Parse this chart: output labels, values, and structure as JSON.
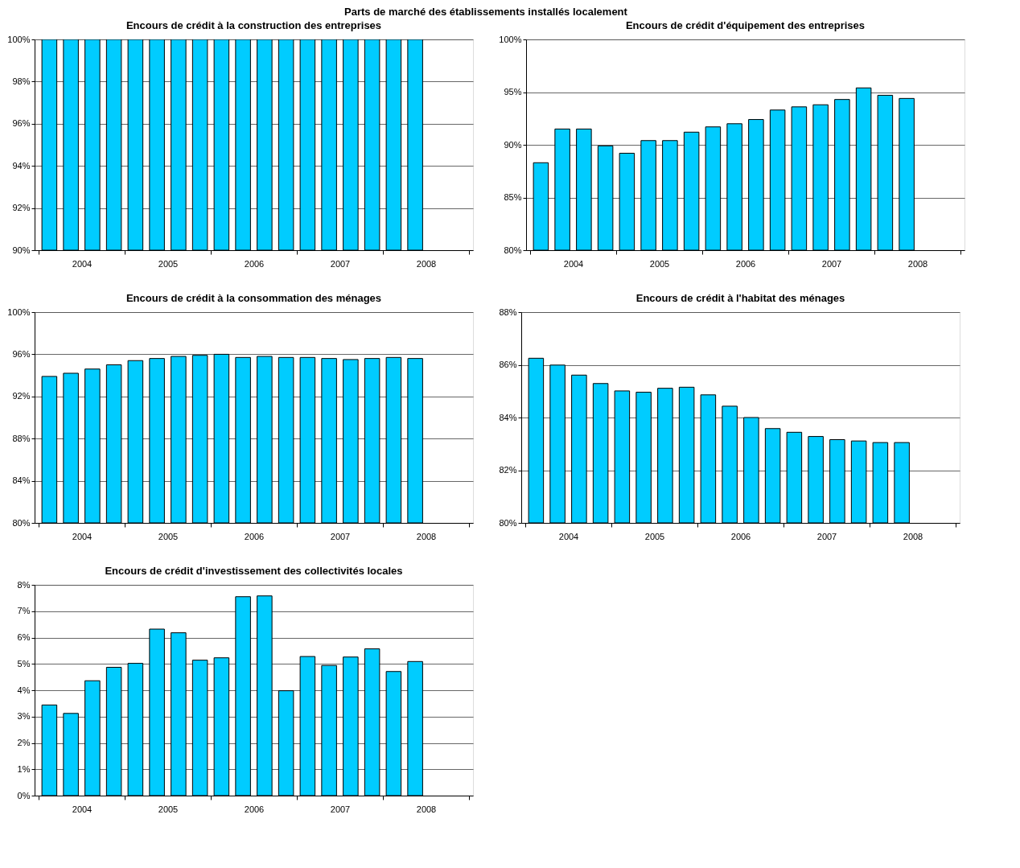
{
  "chart_data": [
    {
      "type": "other",
      "title": "Parts de marché des établissements installés localement"
    },
    {
      "type": "bar",
      "title": "Encours de crédit à la construction des entreprises",
      "color": "#00ccff",
      "grid": "y",
      "x": [
        2004.125,
        2004.375,
        2004.625,
        2004.875,
        2005.125,
        2005.375,
        2005.625,
        2005.875,
        2006.125,
        2006.375,
        2006.625,
        2006.875,
        2007.125,
        2007.375,
        2007.625,
        2007.875,
        2008.125,
        2008.375
      ],
      "values": [
        100,
        100,
        100,
        100,
        100,
        100,
        100,
        100,
        100,
        100,
        100,
        100,
        100,
        100,
        100,
        100,
        100,
        100
      ],
      "xlim": [
        2004,
        2009
      ],
      "xticks": [
        {
          "value": 2004,
          "label": null
        },
        {
          "value": 2004.5,
          "label": "2004"
        },
        {
          "value": 2005,
          "label": null
        },
        {
          "value": 2005.5,
          "label": "2005"
        },
        {
          "value": 2006,
          "label": null
        },
        {
          "value": 2006.5,
          "label": "2006"
        },
        {
          "value": 2007,
          "label": null
        },
        {
          "value": 2007.5,
          "label": "2007"
        },
        {
          "value": 2008,
          "label": null
        },
        {
          "value": 2008.5,
          "label": "2008"
        },
        {
          "value": 2009,
          "label": null
        }
      ],
      "ylim": [
        90,
        100
      ],
      "yticks": [
        {
          "value": 90,
          "label": "90%"
        },
        {
          "value": 92,
          "label": "92%"
        },
        {
          "value": 94,
          "label": "94%"
        },
        {
          "value": 96,
          "label": "96%"
        },
        {
          "value": 98,
          "label": "98%"
        },
        {
          "value": 100,
          "label": "100%"
        }
      ]
    },
    {
      "type": "bar",
      "title": "Encours de crédit d'équipement des entreprises",
      "color": "#00ccff",
      "grid": "y",
      "x": [
        2004.125,
        2004.375,
        2004.625,
        2004.875,
        2005.125,
        2005.375,
        2005.625,
        2005.875,
        2006.125,
        2006.375,
        2006.625,
        2006.875,
        2007.125,
        2007.375,
        2007.625,
        2007.875,
        2008.125,
        2008.375
      ],
      "values": [
        88.3,
        91.5,
        91.5,
        89.9,
        89.2,
        90.4,
        90.4,
        91.2,
        91.7,
        92.0,
        92.4,
        93.3,
        93.6,
        93.8,
        94.3,
        95.4,
        94.7,
        94.4
      ],
      "xlim": [
        2004,
        2009
      ],
      "xticks": [
        {
          "value": 2004,
          "label": null
        },
        {
          "value": 2004.5,
          "label": "2004"
        },
        {
          "value": 2005,
          "label": null
        },
        {
          "value": 2005.5,
          "label": "2005"
        },
        {
          "value": 2006,
          "label": null
        },
        {
          "value": 2006.5,
          "label": "2006"
        },
        {
          "value": 2007,
          "label": null
        },
        {
          "value": 2007.5,
          "label": "2007"
        },
        {
          "value": 2008,
          "label": null
        },
        {
          "value": 2008.5,
          "label": "2008"
        },
        {
          "value": 2009,
          "label": null
        }
      ],
      "ylim": [
        80,
        100
      ],
      "yticks": [
        {
          "value": 80,
          "label": "80%"
        },
        {
          "value": 85,
          "label": "85%"
        },
        {
          "value": 90,
          "label": "90%"
        },
        {
          "value": 95,
          "label": "95%"
        },
        {
          "value": 100,
          "label": "100%"
        }
      ]
    },
    {
      "type": "bar",
      "title": "Encours de crédit à la consommation des ménages",
      "color": "#00ccff",
      "grid": "y",
      "x": [
        2004.125,
        2004.375,
        2004.625,
        2004.875,
        2005.125,
        2005.375,
        2005.625,
        2005.875,
        2006.125,
        2006.375,
        2006.625,
        2006.875,
        2007.125,
        2007.375,
        2007.625,
        2007.875,
        2008.125,
        2008.375
      ],
      "values": [
        93.9,
        94.2,
        94.6,
        95.0,
        95.4,
        95.6,
        95.8,
        95.9,
        96.0,
        95.7,
        95.8,
        95.7,
        95.7,
        95.6,
        95.5,
        95.6,
        95.7,
        95.6
      ],
      "xlim": [
        2004,
        2009
      ],
      "xticks": [
        {
          "value": 2004,
          "label": null
        },
        {
          "value": 2004.5,
          "label": "2004"
        },
        {
          "value": 2005,
          "label": null
        },
        {
          "value": 2005.5,
          "label": "2005"
        },
        {
          "value": 2006,
          "label": null
        },
        {
          "value": 2006.5,
          "label": "2006"
        },
        {
          "value": 2007,
          "label": null
        },
        {
          "value": 2007.5,
          "label": "2007"
        },
        {
          "value": 2008,
          "label": null
        },
        {
          "value": 2008.5,
          "label": "2008"
        },
        {
          "value": 2009,
          "label": null
        }
      ],
      "ylim": [
        80,
        100
      ],
      "yticks": [
        {
          "value": 80,
          "label": "80%"
        },
        {
          "value": 84,
          "label": "84%"
        },
        {
          "value": 88,
          "label": "88%"
        },
        {
          "value": 92,
          "label": "92%"
        },
        {
          "value": 96,
          "label": "96%"
        },
        {
          "value": 100,
          "label": "100%"
        }
      ]
    },
    {
      "type": "bar",
      "title": "Encours de crédit à l'habitat des ménages",
      "color": "#00ccff",
      "grid": "y",
      "x": [
        2004.125,
        2004.375,
        2004.625,
        2004.875,
        2005.125,
        2005.375,
        2005.625,
        2005.875,
        2006.125,
        2006.375,
        2006.625,
        2006.875,
        2007.125,
        2007.375,
        2007.625,
        2007.875,
        2008.125,
        2008.375
      ],
      "values": [
        86.25,
        85.99,
        85.61,
        85.29,
        85.01,
        84.96,
        85.11,
        85.15,
        84.86,
        84.43,
        84.0,
        83.58,
        83.44,
        83.28,
        83.16,
        83.11,
        83.05,
        83.05
      ],
      "xlim": [
        2004,
        2009
      ],
      "xticks": [
        {
          "value": 2004,
          "label": null
        },
        {
          "value": 2004.5,
          "label": "2004"
        },
        {
          "value": 2005,
          "label": null
        },
        {
          "value": 2005.5,
          "label": "2005"
        },
        {
          "value": 2006,
          "label": null
        },
        {
          "value": 2006.5,
          "label": "2006"
        },
        {
          "value": 2007,
          "label": null
        },
        {
          "value": 2007.5,
          "label": "2007"
        },
        {
          "value": 2008,
          "label": null
        },
        {
          "value": 2008.5,
          "label": "2008"
        },
        {
          "value": 2009,
          "label": null
        }
      ],
      "ylim": [
        80,
        88
      ],
      "yticks": [
        {
          "value": 80,
          "label": "80%"
        },
        {
          "value": 82,
          "label": "82%"
        },
        {
          "value": 84,
          "label": "84%"
        },
        {
          "value": 86,
          "label": "86%"
        },
        {
          "value": 88,
          "label": "88%"
        }
      ]
    },
    {
      "type": "bar",
      "title": "Encours de crédit d'investissement des collectivités locales",
      "color": "#00ccff",
      "grid": "y",
      "x": [
        2004.125,
        2004.375,
        2004.625,
        2004.875,
        2005.125,
        2005.375,
        2005.625,
        2005.875,
        2006.125,
        2006.375,
        2006.625,
        2006.875,
        2007.125,
        2007.375,
        2007.625,
        2007.875,
        2008.125,
        2008.375
      ],
      "values": [
        3.44,
        3.12,
        4.36,
        4.87,
        5.02,
        6.32,
        6.18,
        5.14,
        5.23,
        7.55,
        7.58,
        3.98,
        5.28,
        4.94,
        5.26,
        5.57,
        4.71,
        5.09
      ],
      "xlim": [
        2004,
        2009
      ],
      "xticks": [
        {
          "value": 2004,
          "label": null
        },
        {
          "value": 2004.5,
          "label": "2004"
        },
        {
          "value": 2005,
          "label": null
        },
        {
          "value": 2005.5,
          "label": "2005"
        },
        {
          "value": 2006,
          "label": null
        },
        {
          "value": 2006.5,
          "label": "2006"
        },
        {
          "value": 2007,
          "label": null
        },
        {
          "value": 2007.5,
          "label": "2007"
        },
        {
          "value": 2008,
          "label": null
        },
        {
          "value": 2008.5,
          "label": "2008"
        },
        {
          "value": 2009,
          "label": null
        }
      ],
      "ylim": [
        0,
        8
      ],
      "yticks": [
        {
          "value": 0,
          "label": "0%"
        },
        {
          "value": 1,
          "label": "1%"
        },
        {
          "value": 2,
          "label": "2%"
        },
        {
          "value": 3,
          "label": "3%"
        },
        {
          "value": 4,
          "label": "4%"
        },
        {
          "value": 5,
          "label": "5%"
        },
        {
          "value": 6,
          "label": "6%"
        },
        {
          "value": 7,
          "label": "7%"
        },
        {
          "value": 8,
          "label": "8%"
        }
      ]
    }
  ]
}
